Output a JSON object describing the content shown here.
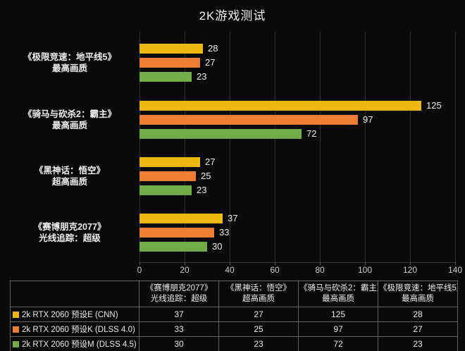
{
  "title": "2K游戏测试",
  "chart_data": {
    "type": "bar",
    "orientation": "horizontal",
    "title": "2K游戏测试",
    "xlim": [
      0,
      140
    ],
    "x_ticks": [
      0,
      20,
      40,
      60,
      80,
      100,
      120,
      140
    ],
    "grid": true,
    "legend_position": "bottom-table",
    "categories": [
      {
        "line1": "《极限竞速：地平线5》",
        "line2": "最高画质"
      },
      {
        "line1": "《骑马与砍杀2：霸主》",
        "line2": "最高画质"
      },
      {
        "line1": "《黑神话：悟空》",
        "line2": "超高画质"
      },
      {
        "line1": "《赛博朋克2077》",
        "line2": "光线追踪：超级"
      }
    ],
    "series": [
      {
        "name": "2k RTX 2060 预设E (CNN)",
        "color": "#eeb711",
        "values": [
          28,
          125,
          27,
          37
        ]
      },
      {
        "name": "2k RTX 2060 预设K (DLSS 4.0)",
        "color": "#ed7d31",
        "values": [
          27,
          97,
          25,
          33
        ]
      },
      {
        "name": "2k RTX 2060 预设M (DLSS 4.5)",
        "color": "#70ad47",
        "values": [
          23,
          72,
          23,
          30
        ]
      }
    ]
  },
  "table": {
    "column_headers": [
      {
        "line1": "《赛博朋克2077》",
        "line2": "光线追踪：超级"
      },
      {
        "line1": "《黑神话：悟空》",
        "line2": "超高画质"
      },
      {
        "line1": "《骑马与砍杀2：霸主》",
        "line2": "最高画质"
      },
      {
        "line1": "《极限竞速：地平线5》",
        "line2": "最高画质"
      }
    ],
    "rows": [
      {
        "label": "2k RTX 2060 预设E (CNN)",
        "color": "#eeb711",
        "values": [
          "37",
          "27",
          "125",
          "28"
        ]
      },
      {
        "label": "2k RTX 2060 预设K (DLSS 4.0)",
        "color": "#ed7d31",
        "values": [
          "33",
          "25",
          "97",
          "27"
        ]
      },
      {
        "label": "2k RTX 2060 预设M (DLSS 4.5)",
        "color": "#70ad47",
        "values": [
          "30",
          "23",
          "72",
          "23"
        ]
      }
    ]
  }
}
